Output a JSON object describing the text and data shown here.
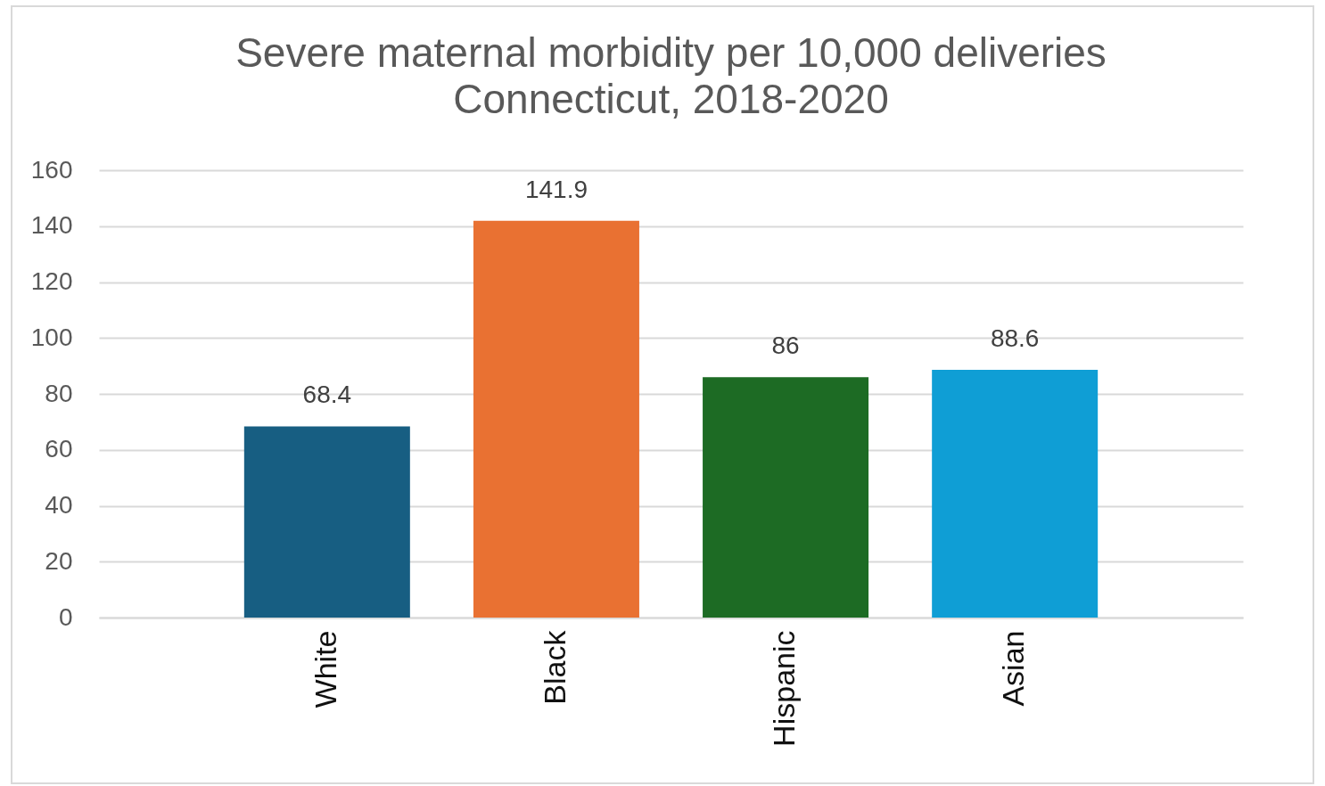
{
  "chart_data": {
    "type": "bar",
    "title": "Severe maternal morbidity per 10,000 deliveries",
    "subtitle": "Connecticut, 2018-2020",
    "categories": [
      "White",
      "Black",
      "Hispanic",
      "Asian"
    ],
    "values": [
      68.4,
      141.9,
      86,
      88.6
    ],
    "colors": [
      "#175e82",
      "#e97132",
      "#1d6b24",
      "#0f9ed5"
    ],
    "ylim": [
      0,
      160
    ],
    "yticks": [
      0,
      20,
      40,
      60,
      80,
      100,
      120,
      140,
      160
    ],
    "grid": "y",
    "data_labels": true
  }
}
